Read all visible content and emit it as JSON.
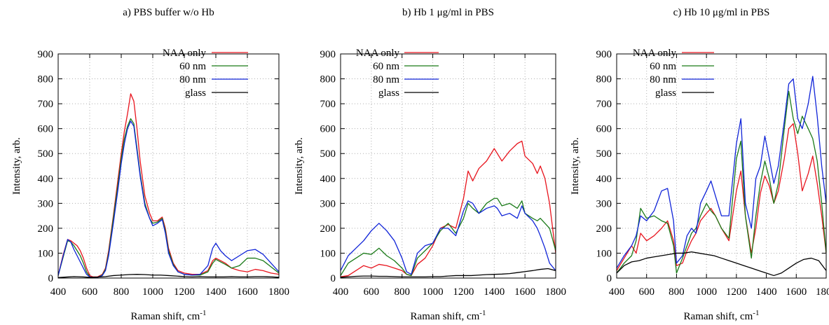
{
  "chart_data": [
    {
      "type": "line",
      "title": "a) PBS buffer w/o Hb",
      "xlabel": "Raman shift, cm",
      "xlabel_sup": "-1",
      "ylabel": "Intensity, arb.",
      "xlim": [
        400,
        1800
      ],
      "ylim": [
        0,
        900
      ],
      "xticks": [
        400,
        600,
        800,
        1000,
        1200,
        1400,
        1600,
        1800
      ],
      "yticks": [
        0,
        100,
        200,
        300,
        400,
        500,
        600,
        700,
        800,
        900
      ],
      "grid": true,
      "legend": "top-right",
      "series": [
        {
          "name": "NAA only",
          "color": "#e8141d",
          "x": [
            400,
            430,
            460,
            480,
            500,
            520,
            540,
            560,
            580,
            600,
            620,
            650,
            680,
            700,
            720,
            750,
            780,
            800,
            820,
            840,
            860,
            880,
            900,
            920,
            950,
            980,
            1000,
            1030,
            1060,
            1080,
            1100,
            1130,
            1160,
            1200,
            1250,
            1300,
            1350,
            1380,
            1400,
            1430,
            1460,
            1500,
            1550,
            1600,
            1650,
            1700,
            1750,
            1800
          ],
          "y": [
            10,
            90,
            155,
            150,
            140,
            130,
            110,
            80,
            40,
            10,
            5,
            5,
            15,
            40,
            110,
            250,
            400,
            500,
            590,
            660,
            740,
            710,
            600,
            470,
            330,
            260,
            230,
            230,
            245,
            200,
            120,
            60,
            30,
            20,
            15,
            15,
            30,
            70,
            80,
            70,
            60,
            40,
            30,
            25,
            35,
            30,
            20,
            15
          ]
        },
        {
          "name": "60 nm",
          "color": "#1a7a18",
          "x": [
            400,
            430,
            460,
            480,
            500,
            520,
            540,
            560,
            580,
            600,
            620,
            650,
            680,
            700,
            720,
            750,
            780,
            800,
            820,
            840,
            860,
            880,
            900,
            920,
            950,
            980,
            1000,
            1030,
            1060,
            1080,
            1100,
            1130,
            1160,
            1200,
            1250,
            1300,
            1350,
            1380,
            1400,
            1430,
            1460,
            1500,
            1550,
            1600,
            1650,
            1700,
            1750,
            1800
          ],
          "y": [
            10,
            80,
            150,
            145,
            130,
            110,
            90,
            60,
            25,
            5,
            3,
            3,
            12,
            35,
            100,
            240,
            380,
            480,
            560,
            610,
            640,
            620,
            520,
            420,
            300,
            240,
            220,
            225,
            240,
            190,
            110,
            55,
            25,
            15,
            12,
            12,
            25,
            60,
            75,
            65,
            55,
            40,
            50,
            80,
            80,
            70,
            45,
            20
          ]
        },
        {
          "name": "80 nm",
          "color": "#1024d8",
          "x": [
            400,
            430,
            460,
            480,
            500,
            520,
            540,
            560,
            580,
            600,
            620,
            650,
            680,
            700,
            720,
            750,
            780,
            800,
            820,
            840,
            860,
            880,
            900,
            920,
            950,
            980,
            1000,
            1030,
            1060,
            1080,
            1100,
            1130,
            1160,
            1200,
            1250,
            1300,
            1350,
            1380,
            1400,
            1430,
            1460,
            1500,
            1550,
            1600,
            1650,
            1700,
            1750,
            1800
          ],
          "y": [
            10,
            85,
            155,
            145,
            115,
            90,
            65,
            40,
            15,
            5,
            3,
            3,
            10,
            30,
            90,
            220,
            360,
            460,
            540,
            600,
            630,
            610,
            510,
            410,
            290,
            240,
            210,
            220,
            235,
            180,
            100,
            50,
            25,
            15,
            12,
            15,
            50,
            120,
            140,
            110,
            90,
            70,
            90,
            110,
            115,
            95,
            60,
            25
          ]
        },
        {
          "name": "glass",
          "color": "#000000",
          "x": [
            400,
            450,
            500,
            550,
            600,
            650,
            700,
            750,
            800,
            850,
            900,
            950,
            1000,
            1050,
            1100,
            1150,
            1200,
            1250,
            1300,
            1350,
            1400,
            1450,
            1500,
            1550,
            1600,
            1650,
            1700,
            1750,
            1800
          ],
          "y": [
            2,
            4,
            6,
            5,
            3,
            4,
            6,
            10,
            12,
            14,
            15,
            14,
            12,
            12,
            10,
            8,
            6,
            5,
            6,
            5,
            5,
            5,
            6,
            5,
            5,
            6,
            6,
            5,
            3
          ]
        }
      ]
    },
    {
      "type": "line",
      "title": "b) Hb 1 μg/ml in PBS",
      "xlabel": "Raman shift, cm",
      "xlabel_sup": "-1",
      "ylabel": "Intensity, arb.",
      "xlim": [
        400,
        1800
      ],
      "ylim": [
        0,
        900
      ],
      "xticks": [
        400,
        600,
        800,
        1000,
        1200,
        1400,
        1600,
        1800
      ],
      "yticks": [
        0,
        100,
        200,
        300,
        400,
        500,
        600,
        700,
        800,
        900
      ],
      "grid": true,
      "legend": "top-right",
      "series": [
        {
          "name": "NAA only",
          "color": "#e8141d",
          "x": [
            400,
            450,
            500,
            550,
            600,
            650,
            700,
            750,
            800,
            830,
            860,
            900,
            950,
            1000,
            1050,
            1100,
            1150,
            1200,
            1230,
            1260,
            1300,
            1350,
            1400,
            1420,
            1450,
            1500,
            1550,
            1580,
            1600,
            1650,
            1680,
            1700,
            1730,
            1760,
            1800
          ],
          "y": [
            5,
            10,
            30,
            50,
            40,
            55,
            50,
            40,
            30,
            15,
            10,
            55,
            80,
            130,
            200,
            215,
            200,
            320,
            430,
            390,
            440,
            470,
            520,
            500,
            470,
            510,
            540,
            550,
            490,
            460,
            420,
            450,
            400,
            300,
            100
          ]
        },
        {
          "name": "60 nm",
          "color": "#1a7a18",
          "x": [
            400,
            450,
            500,
            550,
            600,
            650,
            700,
            750,
            800,
            830,
            860,
            900,
            950,
            1000,
            1050,
            1100,
            1150,
            1200,
            1230,
            1260,
            1300,
            1350,
            1400,
            1420,
            1450,
            1500,
            1550,
            1580,
            1600,
            1650,
            1680,
            1700,
            1730,
            1760,
            1800
          ],
          "y": [
            10,
            60,
            80,
            100,
            95,
            120,
            90,
            70,
            40,
            15,
            10,
            80,
            110,
            140,
            190,
            220,
            180,
            240,
            300,
            280,
            260,
            300,
            320,
            320,
            290,
            300,
            280,
            310,
            260,
            240,
            230,
            240,
            220,
            200,
            110
          ]
        },
        {
          "name": "80 nm",
          "color": "#1024d8",
          "x": [
            400,
            450,
            500,
            550,
            600,
            650,
            700,
            750,
            800,
            830,
            860,
            900,
            950,
            1000,
            1050,
            1100,
            1150,
            1200,
            1230,
            1260,
            1300,
            1350,
            1400,
            1420,
            1450,
            1500,
            1550,
            1580,
            1600,
            1650,
            1680,
            1700,
            1730,
            1760,
            1800
          ],
          "y": [
            30,
            90,
            120,
            150,
            190,
            220,
            190,
            150,
            80,
            25,
            15,
            100,
            130,
            140,
            200,
            200,
            170,
            270,
            310,
            300,
            260,
            280,
            290,
            280,
            250,
            260,
            240,
            290,
            260,
            230,
            200,
            170,
            120,
            60,
            30
          ]
        },
        {
          "name": "glass",
          "color": "#000000",
          "x": [
            400,
            450,
            500,
            550,
            600,
            650,
            700,
            750,
            800,
            850,
            900,
            950,
            1000,
            1050,
            1100,
            1150,
            1200,
            1250,
            1300,
            1350,
            1400,
            1450,
            1500,
            1550,
            1600,
            1650,
            1700,
            1750,
            1800
          ],
          "y": [
            3,
            5,
            7,
            8,
            8,
            7,
            7,
            6,
            5,
            5,
            5,
            5,
            6,
            6,
            8,
            10,
            10,
            10,
            12,
            14,
            15,
            16,
            18,
            22,
            26,
            30,
            35,
            38,
            30
          ]
        }
      ]
    },
    {
      "type": "line",
      "title": "c) Hb 10 μg/ml in PBS",
      "xlabel": "Raman shift, cm",
      "xlabel_sup": "-1",
      "ylabel": "Intensity, arb.",
      "xlim": [
        400,
        1800
      ],
      "ylim": [
        0,
        900
      ],
      "xticks": [
        400,
        600,
        800,
        1000,
        1200,
        1400,
        1600,
        1800
      ],
      "yticks": [
        0,
        100,
        200,
        300,
        400,
        500,
        600,
        700,
        800,
        900
      ],
      "grid": true,
      "legend": "top-right",
      "series": [
        {
          "name": "NAA only",
          "color": "#e8141d",
          "x": [
            400,
            450,
            500,
            530,
            560,
            600,
            650,
            700,
            740,
            780,
            800,
            840,
            870,
            900,
            930,
            960,
            1000,
            1030,
            1060,
            1100,
            1150,
            1200,
            1230,
            1260,
            1300,
            1330,
            1360,
            1390,
            1420,
            1450,
            1480,
            1520,
            1550,
            1580,
            1610,
            1640,
            1680,
            1710,
            1740,
            1770,
            1800
          ],
          "y": [
            30,
            80,
            130,
            100,
            180,
            150,
            170,
            200,
            230,
            150,
            50,
            60,
            110,
            150,
            180,
            230,
            260,
            280,
            250,
            200,
            150,
            350,
            430,
            250,
            100,
            200,
            340,
            410,
            370,
            300,
            350,
            480,
            600,
            620,
            500,
            350,
            420,
            490,
            380,
            250,
            100
          ]
        },
        {
          "name": "60 nm",
          "color": "#1a7a18",
          "x": [
            400,
            450,
            500,
            530,
            560,
            600,
            650,
            700,
            740,
            780,
            800,
            840,
            870,
            900,
            930,
            960,
            1000,
            1030,
            1060,
            1100,
            1150,
            1200,
            1230,
            1260,
            1300,
            1330,
            1360,
            1390,
            1420,
            1450,
            1480,
            1520,
            1550,
            1580,
            1610,
            1640,
            1680,
            1710,
            1740,
            1770,
            1800
          ],
          "y": [
            20,
            60,
            90,
            150,
            280,
            240,
            250,
            230,
            220,
            130,
            20,
            80,
            130,
            180,
            200,
            250,
            300,
            270,
            250,
            200,
            160,
            480,
            550,
            250,
            80,
            250,
            380,
            470,
            400,
            300,
            380,
            600,
            750,
            640,
            580,
            650,
            600,
            560,
            470,
            300,
            100
          ]
        },
        {
          "name": "80 nm",
          "color": "#1024d8",
          "x": [
            400,
            450,
            500,
            530,
            560,
            600,
            650,
            700,
            740,
            780,
            800,
            840,
            870,
            900,
            930,
            960,
            1000,
            1030,
            1060,
            1100,
            1150,
            1200,
            1230,
            1260,
            1300,
            1330,
            1360,
            1390,
            1420,
            1450,
            1480,
            1520,
            1550,
            1580,
            1610,
            1640,
            1680,
            1710,
            1740,
            1770,
            1800
          ],
          "y": [
            40,
            90,
            130,
            170,
            250,
            230,
            270,
            350,
            360,
            230,
            60,
            90,
            170,
            200,
            180,
            300,
            350,
            390,
            330,
            250,
            250,
            540,
            640,
            300,
            200,
            400,
            450,
            570,
            480,
            380,
            450,
            630,
            780,
            800,
            640,
            600,
            700,
            810,
            650,
            450,
            300
          ]
        },
        {
          "name": "glass",
          "color": "#000000",
          "x": [
            400,
            450,
            500,
            550,
            600,
            650,
            700,
            750,
            800,
            850,
            900,
            950,
            1000,
            1050,
            1100,
            1150,
            1200,
            1250,
            1300,
            1350,
            1400,
            1450,
            1500,
            1550,
            1600,
            1650,
            1700,
            1750,
            1800
          ],
          "y": [
            20,
            50,
            65,
            70,
            80,
            85,
            90,
            95,
            100,
            100,
            105,
            100,
            95,
            90,
            80,
            70,
            60,
            50,
            40,
            30,
            20,
            10,
            20,
            40,
            60,
            75,
            80,
            70,
            30
          ]
        }
      ]
    }
  ]
}
